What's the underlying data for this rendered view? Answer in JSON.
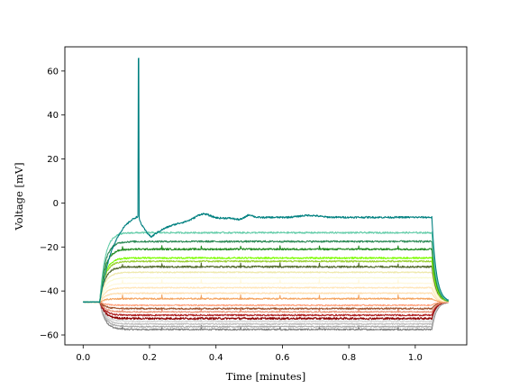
{
  "chart_data": {
    "type": "line",
    "title": "",
    "xlabel": "Time [minutes]",
    "ylabel": "Voltage [mV]",
    "xlim": [
      -0.055,
      1.155
    ],
    "ylim": [
      -64.5,
      71
    ],
    "grid": false,
    "legend": "none",
    "xticks": [
      0.0,
      0.2,
      0.4,
      0.6,
      0.8,
      1.0
    ],
    "xtick_labels": [
      "0.0",
      "0.2",
      "0.4",
      "0.6",
      "0.8",
      "1.0"
    ],
    "yticks": [
      -60,
      -40,
      -20,
      0,
      20,
      40,
      60
    ],
    "ytick_labels": [
      "−60",
      "−40",
      "−20",
      "0",
      "20",
      "40",
      "60"
    ],
    "stimulus": {
      "onset": 0.05,
      "offset": 1.05,
      "end": 1.1,
      "resting": -45
    },
    "spike": {
      "peak_time": 0.168,
      "peak_voltage": 65.5,
      "threshold": -6,
      "ahp_time": 0.205,
      "ahp_voltage": -15.5
    },
    "series": [
      {
        "color": "#808080",
        "steady": -57.5,
        "noise": 0.35
      },
      {
        "color": "#a9a9a9",
        "steady": -56.2,
        "noise": 0.3
      },
      {
        "color": "#c0c0c0",
        "steady": -55.0,
        "noise": 0.3
      },
      {
        "color": "#d3d3d3",
        "steady": -53.8,
        "noise": 0.3
      },
      {
        "color": "#8b0000",
        "steady": -52.5,
        "noise": 0.45
      },
      {
        "color": "#b22222",
        "steady": -51.0,
        "noise": 0.35
      },
      {
        "color": "#e9967a",
        "steady": -49.5,
        "noise": 0.3
      },
      {
        "color": "#a0522d",
        "steady": -48.0,
        "noise": 0.35
      },
      {
        "color": "#ffa07a",
        "steady": -46.5,
        "noise": 0.3
      },
      {
        "color": "#f4a460",
        "steady": -43.5,
        "noise": 0.3
      },
      {
        "color": "#ffdead",
        "steady": -41.0,
        "noise": 0.25
      },
      {
        "color": "#ffe4b5",
        "steady": -38.5,
        "noise": 0.25
      },
      {
        "color": "#fff8dc",
        "steady": -36.5,
        "noise": 0.2
      },
      {
        "color": "#fafad2",
        "steady": -34.0,
        "noise": 0.2
      },
      {
        "color": "#eee8aa",
        "steady": -31.5,
        "noise": 0.25
      },
      {
        "color": "#556b2f",
        "steady": -29.0,
        "noise": 0.4
      },
      {
        "color": "#9acd32",
        "steady": -26.5,
        "noise": 0.35
      },
      {
        "color": "#7cfc00",
        "steady": -25.0,
        "noise": 0.35
      },
      {
        "color": "#228b22",
        "steady": -21.0,
        "noise": 0.4
      },
      {
        "color": "#2e8b57",
        "steady": -17.5,
        "noise": 0.4
      },
      {
        "color": "#66cdaa",
        "steady": -13.5,
        "noise": 0.35
      },
      {
        "color": "#008080",
        "steady": -6.5,
        "noise": 0.4,
        "spiking": true
      }
    ]
  }
}
